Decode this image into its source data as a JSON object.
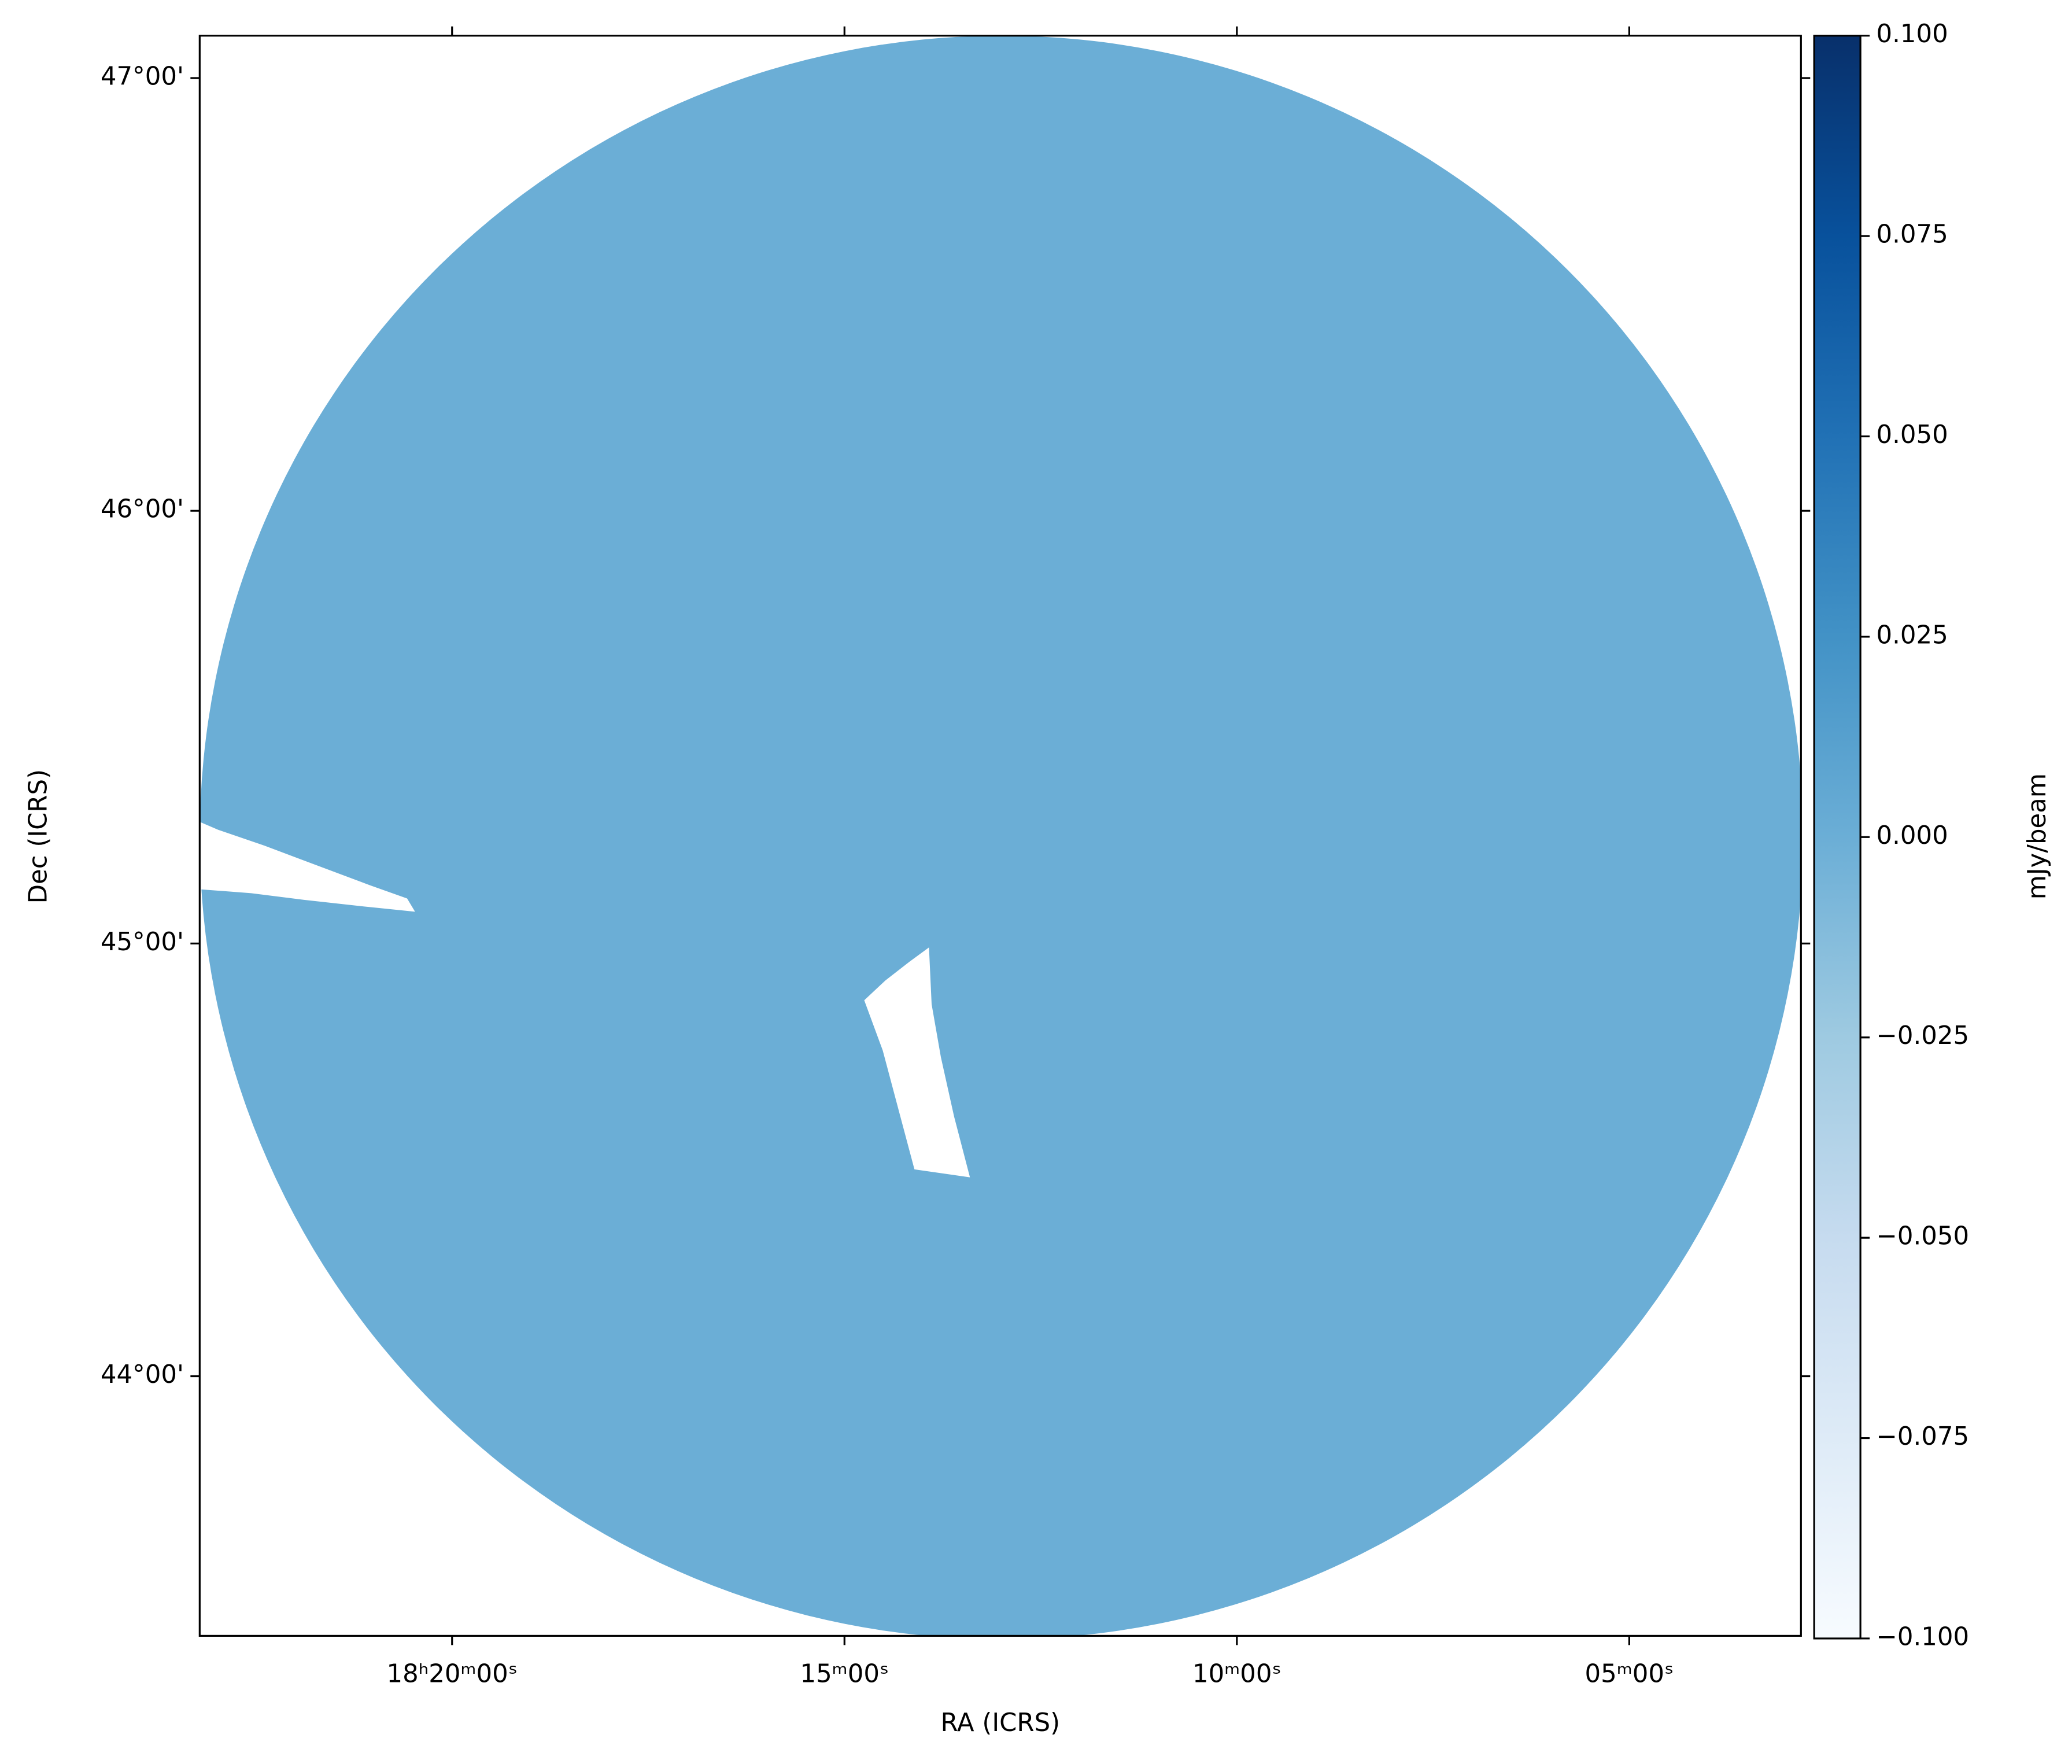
{
  "chart_data": {
    "type": "sky-image",
    "x_label": "RA (ICRS)",
    "y_label": "Dec (ICRS)",
    "xlim": [
      275.804,
      270.703
    ],
    "ylim": [
      43.4,
      47.098
    ],
    "xticks": [
      {
        "value": 275,
        "label": "18ʰ20ᵐ00ˢ"
      },
      {
        "value": 273.75,
        "label": "15ᵐ00ˢ"
      },
      {
        "value": 272.5,
        "label": "10ᵐ00ˢ"
      },
      {
        "value": 271.25,
        "label": "05ᵐ00ˢ"
      }
    ],
    "yticks": [
      {
        "value": 44,
        "label": "44°00'"
      },
      {
        "value": 45,
        "label": "45°00'"
      },
      {
        "value": 46,
        "label": "46°00'"
      },
      {
        "value": 47,
        "label": "47°00'"
      }
    ],
    "field": {
      "ra": 273.25,
      "dec": 45.245,
      "radius": 1.853,
      "color": "#6baed6"
    },
    "colorbar": {
      "label": "mJy/beam",
      "lim": [
        -0.1,
        0.1
      ],
      "colormap": [
        "#f7fbff",
        "#deebf7",
        "#c6dbef",
        "#9ecae1",
        "#6baed6",
        "#4292c6",
        "#2171b5",
        "#08519c",
        "#08306b"
      ],
      "ticks": [
        {
          "value": -0.1,
          "label": "−0.100"
        },
        {
          "value": -0.075,
          "label": "−0.075"
        },
        {
          "value": -0.05,
          "label": "−0.050"
        },
        {
          "value": -0.025,
          "label": "−0.025"
        },
        {
          "value": 0,
          "label": "0.000"
        },
        {
          "value": 0.025,
          "label": "0.025"
        },
        {
          "value": 0.05,
          "label": "0.050"
        },
        {
          "value": 0.075,
          "label": "0.075"
        },
        {
          "value": 0.1,
          "label": "0.100"
        }
      ]
    }
  }
}
